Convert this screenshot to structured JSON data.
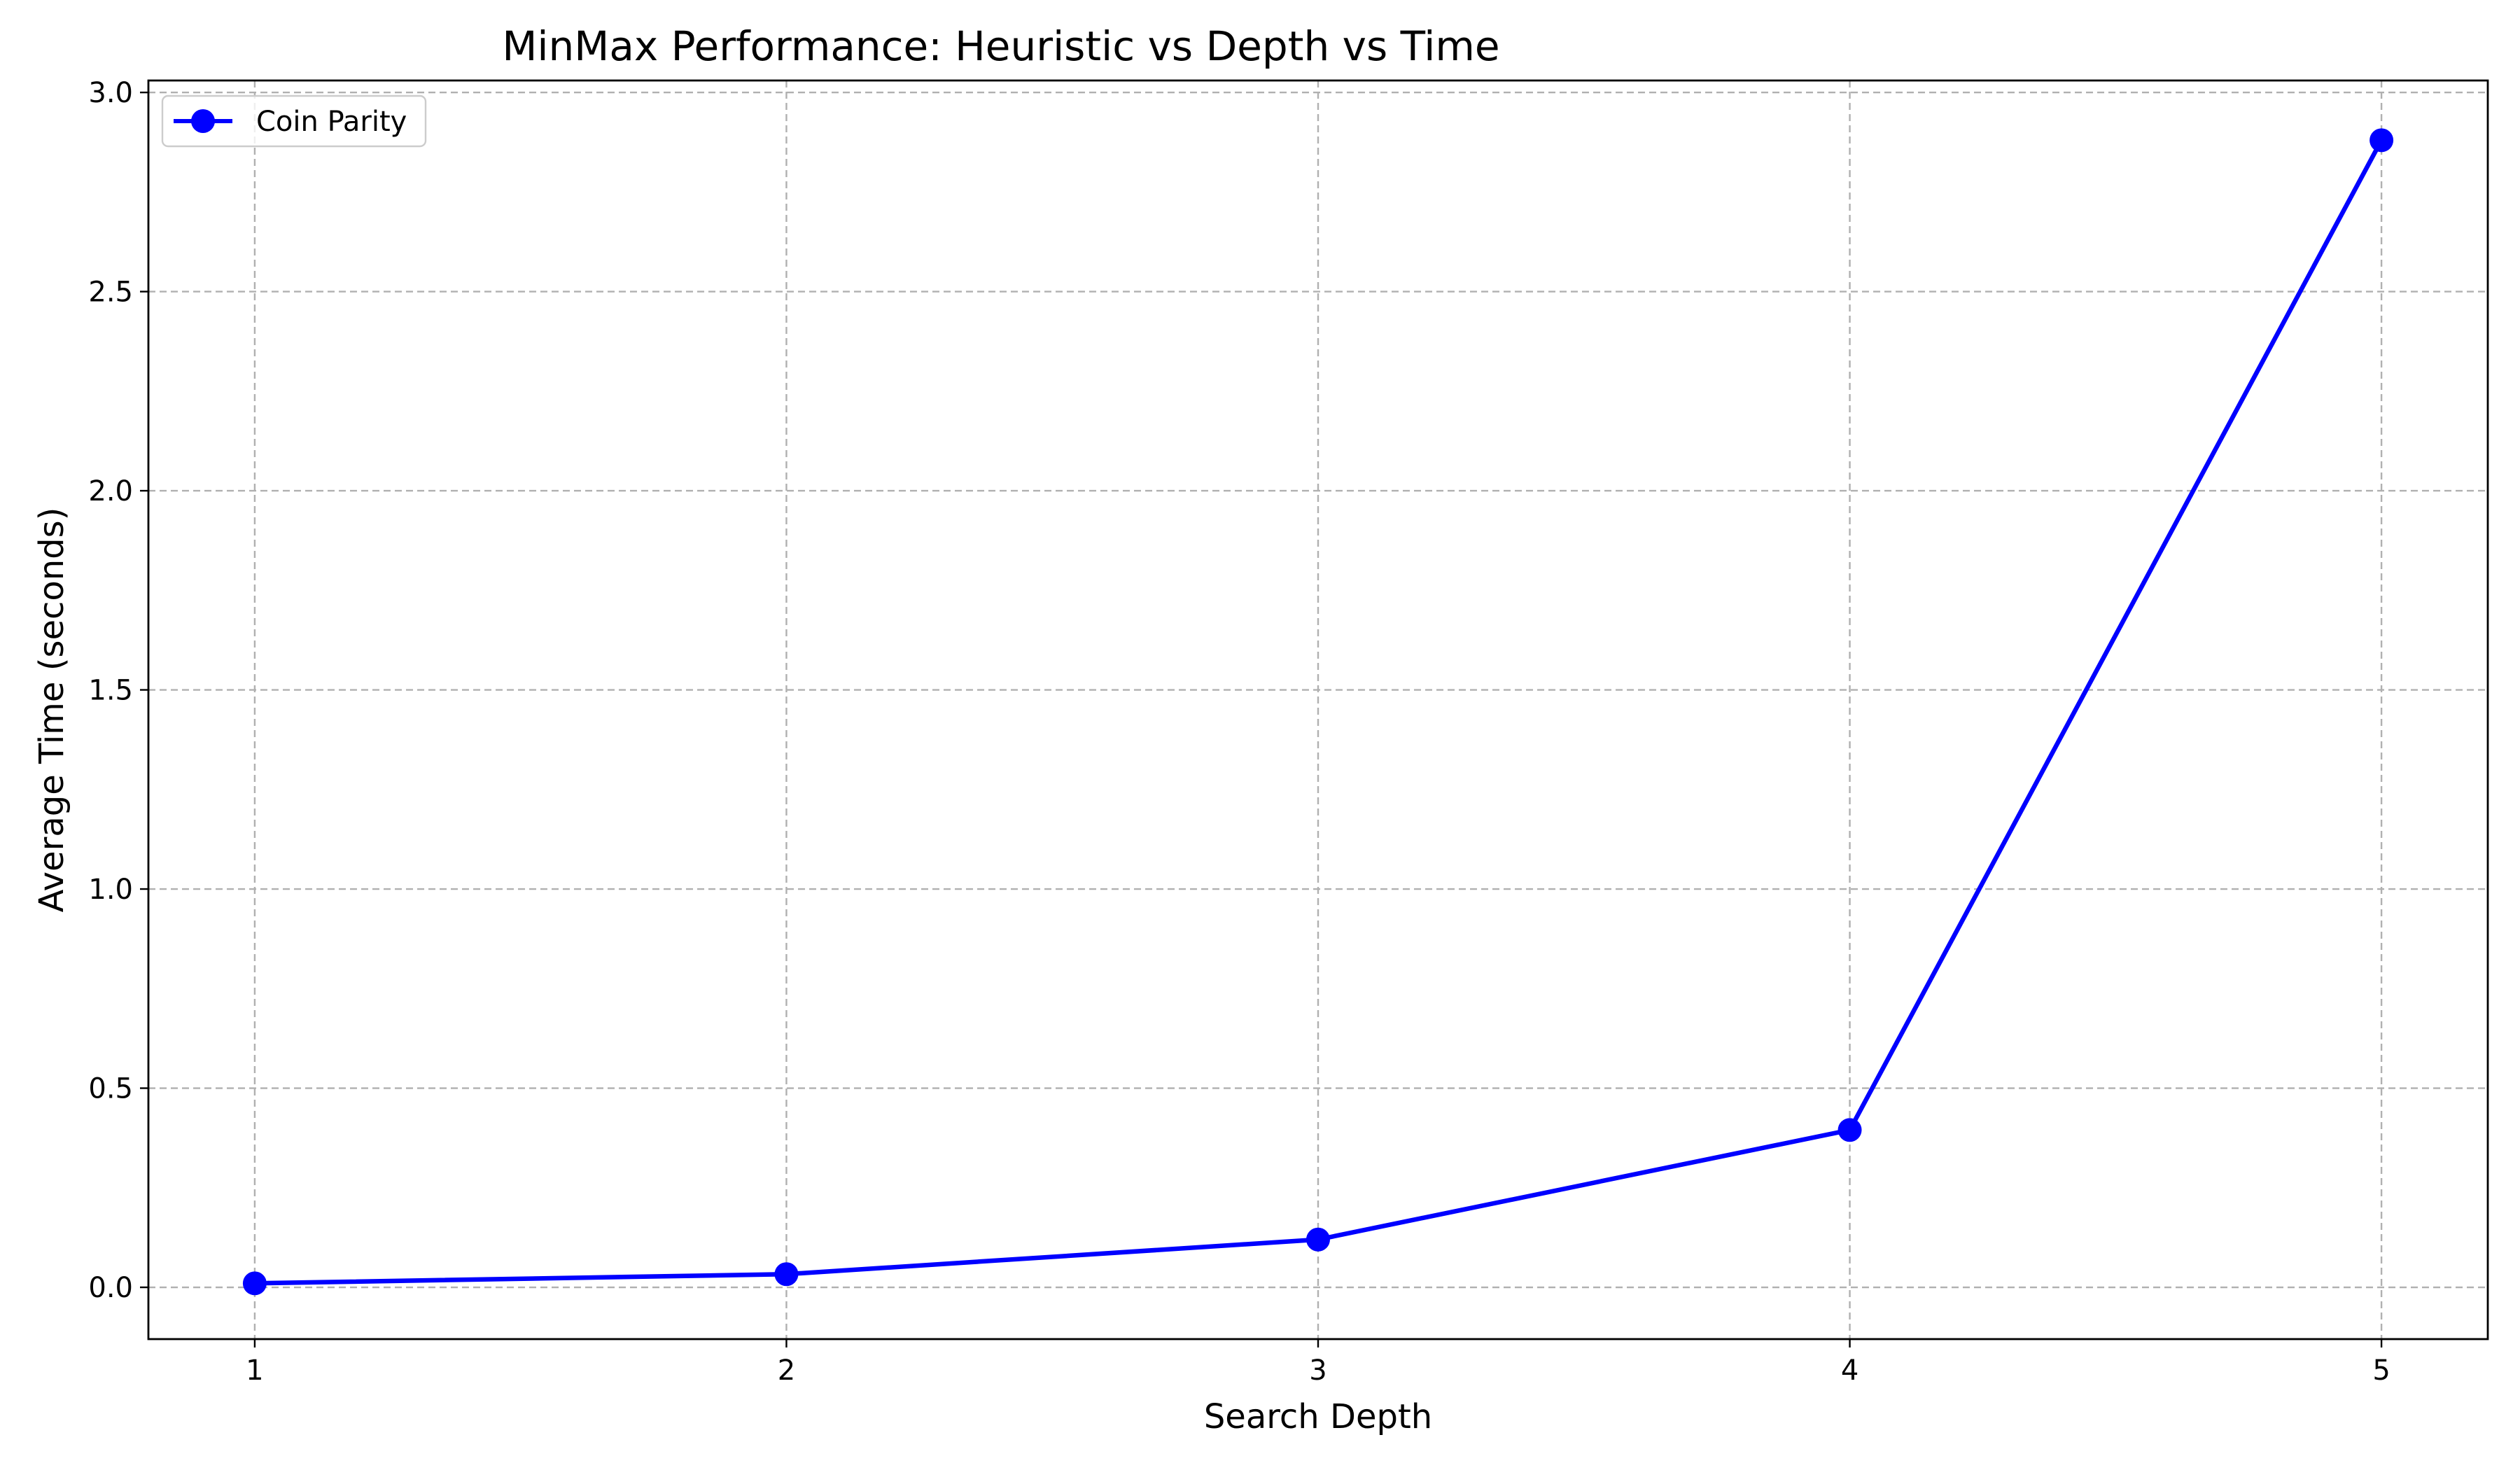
{
  "chart_data": {
    "type": "line",
    "title": "MinMax Performance: Heuristic vs Depth vs Time",
    "xlabel": "Search Depth",
    "ylabel": "Average Time (seconds)",
    "x": [
      1,
      2,
      3,
      4,
      5
    ],
    "x_tick_labels": [
      "1",
      "2",
      "3",
      "4",
      "5"
    ],
    "y_tick_labels": [
      "0.0",
      "0.5",
      "1.0",
      "1.5",
      "2.0",
      "2.5",
      "3.0"
    ],
    "y_ticks": [
      0.0,
      0.5,
      1.0,
      1.5,
      2.0,
      2.5,
      3.0
    ],
    "xlim": [
      0.8,
      5.2
    ],
    "ylim": [
      -0.13,
      3.03
    ],
    "grid": true,
    "legend_position": "top-left",
    "series": [
      {
        "name": "Coin Parity",
        "color": "#0000ff",
        "marker": "circle",
        "values": [
          0.01,
          0.033,
          0.12,
          0.395,
          2.88
        ]
      }
    ]
  }
}
